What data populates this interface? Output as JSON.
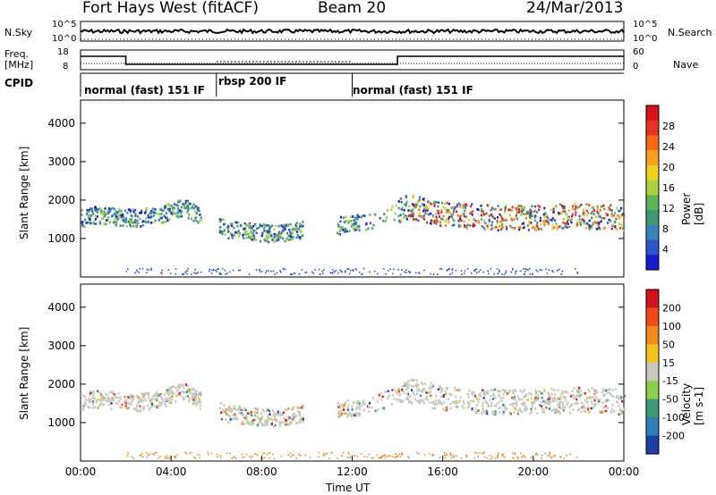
{
  "header": {
    "title": "Fort Hays West (fitACF)",
    "beam": "Beam 20",
    "date": "24/Mar/2013"
  },
  "top_panels": {
    "nsky_label": "N.Sky",
    "nsky_ticks": [
      "10^5",
      "10^0"
    ],
    "nsearch_label": "N.Search",
    "nsearch_ticks": [
      "10^5",
      "10^0"
    ],
    "freq_label": "Freq.",
    "freq_unit": "[MHz]",
    "freq_ticks": [
      "18",
      "8"
    ],
    "nave_label": "Nave",
    "nave_ticks": [
      "60",
      "0"
    ],
    "cpid_label": "CPID"
  },
  "cpid_modes": [
    {
      "label": "normal (fast) 151 IF",
      "start_hour": 0,
      "end_hour": 6.0
    },
    {
      "label": "rbsp 200 IF",
      "start_hour": 6.0,
      "end_hour": 12.0
    },
    {
      "label": "normal (fast) 151 IF",
      "start_hour": 12.0,
      "end_hour": 24
    }
  ],
  "chart_data": [
    {
      "type": "heatmap",
      "title": "",
      "xlabel": "Time UT",
      "ylabel": "Slant Range [km]",
      "xlim": [
        0,
        24
      ],
      "ylim": [
        0,
        4600
      ],
      "y_ticks": [
        "4000",
        "3000",
        "2000",
        "1000"
      ],
      "colorbar": {
        "label": "Power [dB]",
        "ticks": [
          "28",
          "24",
          "20",
          "16",
          "12",
          "8",
          "4"
        ],
        "colors": [
          "#1a1acf",
          "#2d55c6",
          "#3b82b8",
          "#3e9a72",
          "#5fb35a",
          "#a7d23c",
          "#f0d020",
          "#f7a021",
          "#f66a1a",
          "#e83222",
          "#d4141a"
        ]
      },
      "series": [
        {
          "name": "",
          "values": [
            [
              0.2,
              1600
            ],
            [
              1.5,
              1550
            ],
            [
              2.5,
              1500
            ],
            [
              3.5,
              1600
            ],
            [
              4.5,
              1800
            ],
            [
              6.5,
              1200
            ],
            [
              8.5,
              1100
            ],
            [
              12.5,
              1400
            ],
            [
              14.5,
              1800
            ],
            [
              16,
              1600
            ],
            [
              18,
              1500
            ],
            [
              20,
              1500
            ],
            [
              22,
              1550
            ],
            [
              23.8,
              1500
            ]
          ]
        }
      ]
    },
    {
      "type": "heatmap",
      "title": "",
      "xlabel": "Time UT",
      "ylabel": "Slant Range [km]",
      "xlim": [
        0,
        24
      ],
      "ylim": [
        0,
        4600
      ],
      "y_ticks": [
        "4000",
        "3000",
        "2000",
        "1000"
      ],
      "x_ticks": [
        "00:00",
        "04:00",
        "08:00",
        "12:00",
        "16:00",
        "20:00",
        "00:00"
      ],
      "colorbar": {
        "label": "Velocity [m s-1]",
        "ticks": [
          "200",
          "100",
          "50",
          "15",
          "-15",
          "-50",
          "-100",
          "-200"
        ],
        "colors": [
          "#1d3fa8",
          "#2f7fb8",
          "#3e9a72",
          "#8ad04a",
          "#c9c9c0",
          "#f3c21c",
          "#f48a1c",
          "#f24a1a",
          "#d4141a"
        ]
      },
      "series": [
        {
          "name": "",
          "values": [
            [
              0.2,
              1600
            ],
            [
              1.5,
              1550
            ],
            [
              2.5,
              1500
            ],
            [
              3.5,
              1600
            ],
            [
              4.5,
              1800
            ],
            [
              6.5,
              1200
            ],
            [
              8.5,
              1100
            ],
            [
              12.5,
              1400
            ],
            [
              14.5,
              1800
            ],
            [
              16,
              1600
            ],
            [
              18,
              1500
            ],
            [
              20,
              1500
            ],
            [
              22,
              1550
            ],
            [
              23.8,
              1500
            ]
          ]
        }
      ]
    }
  ]
}
